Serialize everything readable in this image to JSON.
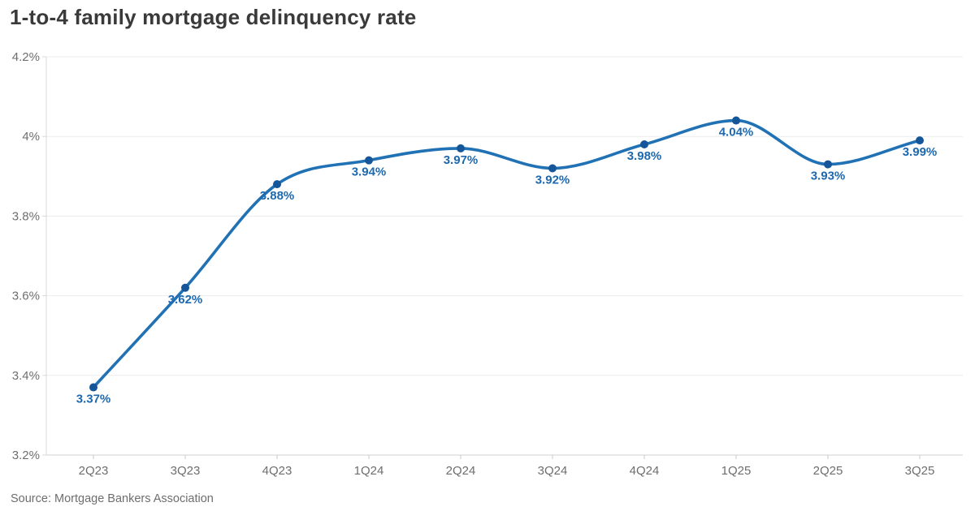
{
  "page": {
    "title": "1-to-4 family mortgage delinquency rate",
    "source": "Source: Mortgage Bankers Association"
  },
  "chart_data": {
    "type": "line",
    "title": "1-to-4 family mortgage delinquency rate",
    "xlabel": "",
    "ylabel": "",
    "categories": [
      "2Q23",
      "3Q23",
      "4Q23",
      "1Q24",
      "2Q24",
      "3Q24",
      "4Q24",
      "1Q25",
      "2Q25",
      "3Q25"
    ],
    "series": [
      {
        "name": "1-to-4 family mortgage delinquency rate",
        "values": [
          3.37,
          3.62,
          3.88,
          3.94,
          3.97,
          3.92,
          3.98,
          4.04,
          3.93,
          3.99
        ],
        "point_labels": [
          "3.37%",
          "3.62%",
          "3.88%",
          "3.94%",
          "3.97%",
          "3.92%",
          "3.98%",
          "4.04%",
          "3.93%",
          "3.99%"
        ]
      }
    ],
    "ylim": [
      3.2,
      4.2
    ],
    "y_tick_values": [
      4.2,
      4.0,
      3.8,
      3.6,
      3.4,
      3.2
    ],
    "y_tick_labels": [
      "4.2%",
      "4%",
      "3.8%",
      "3.6%",
      "3.4%",
      "3.2%"
    ],
    "grid": "horizontal",
    "legend": "none",
    "interpolation": "monotone",
    "source": "Source: Mortgage Bankers Association",
    "colors": {
      "line": "#2171b5",
      "point": "#15569b",
      "point_label": "#1d68ae",
      "title": "#3a3a3a",
      "axis_text": "#6e6e6e",
      "gridline": "#ececec",
      "axis_line": "#d9d9d9",
      "tick": "#c9c9c9",
      "background": "#ffffff"
    }
  }
}
